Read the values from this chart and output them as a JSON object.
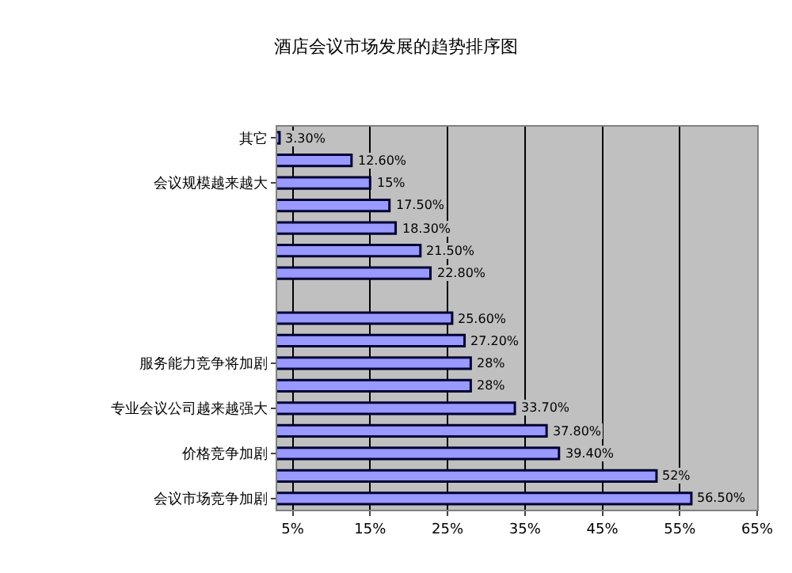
{
  "chart_data": {
    "type": "bar",
    "orientation": "horizontal",
    "title": "酒店会议市场发展的趋势排序图",
    "categories": [
      "其它",
      null,
      "会议规模越来越大",
      null,
      null,
      null,
      null,
      null,
      null,
      null,
      "服务能力竞争将加剧",
      null,
      "专业会议公司越来越强大",
      null,
      "价格竞争加剧",
      null,
      "会议市场竞争加剧"
    ],
    "values": [
      3.3,
      12.6,
      15,
      17.5,
      18.3,
      21.5,
      22.8,
      null,
      25.6,
      27.2,
      28,
      28,
      33.7,
      37.8,
      39.4,
      52,
      56.5
    ],
    "value_labels": [
      "3.30%",
      "12.60%",
      "15%",
      "17.50%",
      "18.30%",
      "21.50%",
      "22.80%",
      null,
      "25.60%",
      "27.20%",
      "28%",
      "28%",
      "33.70%",
      "37.80%",
      "39.40%",
      "52%",
      "56.50%"
    ],
    "color": "#9999ff",
    "xlim": [
      3,
      65
    ],
    "xticks": [
      {
        "value": 5,
        "label": "5%"
      },
      {
        "value": 15,
        "label": "15%"
      },
      {
        "value": 25,
        "label": "25%"
      },
      {
        "value": 35,
        "label": "35%"
      },
      {
        "value": 45,
        "label": "45%"
      },
      {
        "value": 55,
        "label": "55%"
      },
      {
        "value": 65,
        "label": "65%"
      }
    ],
    "grid": "x"
  }
}
